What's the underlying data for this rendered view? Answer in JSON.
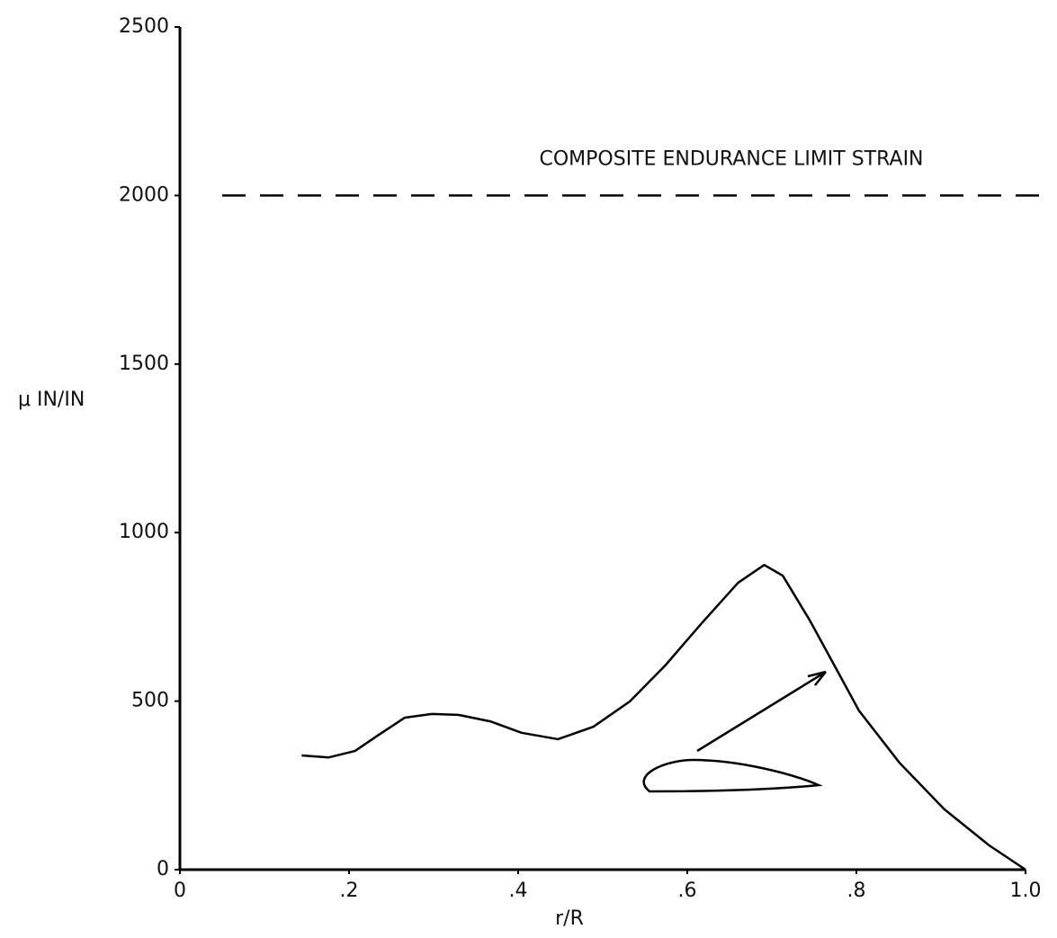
{
  "chart_data": {
    "type": "line",
    "x_label": "r/R",
    "y_label": "μ IN/IN",
    "x": [
      0.144,
      0.176,
      0.207,
      0.234,
      0.266,
      0.298,
      0.33,
      0.367,
      0.404,
      0.447,
      0.489,
      0.532,
      0.574,
      0.617,
      0.66,
      0.691,
      0.713,
      0.745,
      0.777,
      0.803,
      0.851,
      0.904,
      0.957,
      1.0
    ],
    "values": [
      339,
      333,
      352,
      398,
      451,
      462,
      459,
      440,
      406,
      387,
      424,
      499,
      606,
      731,
      851,
      904,
      872,
      739,
      592,
      472,
      317,
      179,
      72,
      0
    ],
    "color": "#000000",
    "xlim": [
      0,
      1
    ],
    "ylim": [
      0,
      2500
    ],
    "xticks": [
      0,
      {
        "value": 0.2,
        "label": ".2"
      },
      {
        "value": 0.4,
        "label": ".4"
      },
      {
        "value": 0.6,
        "label": ".6"
      },
      {
        "value": 0.8,
        "label": ".8"
      },
      {
        "value": 1,
        "label": "1.0"
      }
    ],
    "yticks": [
      0,
      500,
      1000,
      1500,
      2000,
      2500
    ],
    "reference_line": {
      "value": 2000,
      "label": "COMPOSITE ENDURANCE LIMIT STRAIN"
    },
    "grid": false
  }
}
